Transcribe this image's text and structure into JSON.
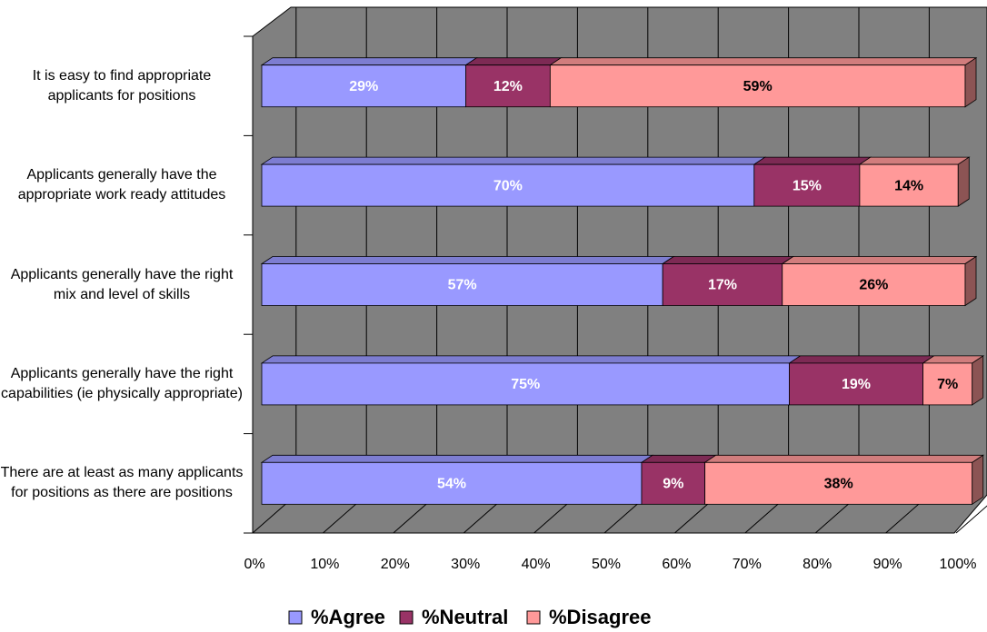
{
  "chart_data": {
    "type": "bar3d-stacked-horizontal",
    "categories": [
      "It is easy to find appropriate applicants for positions",
      "Applicants generally have the appropriate work ready attitudes",
      "Applicants generally have the right mix and level of skills",
      "Applicants generally have the right capabilities (ie physically appropriate)",
      "There are at least as many applicants for positions as there are positions"
    ],
    "series": [
      {
        "name": "%Agree",
        "color": "#9999ff",
        "values": [
          29,
          70,
          57,
          75,
          54
        ],
        "value_labels": [
          "29%",
          "70%",
          "57%",
          "75%",
          "54%"
        ]
      },
      {
        "name": "%Neutral",
        "color": "#993366",
        "values": [
          12,
          15,
          17,
          19,
          9
        ],
        "value_labels": [
          "12%",
          "15%",
          "17%",
          "19%",
          "9%"
        ]
      },
      {
        "name": "%Disagree",
        "color": "#ff9999",
        "values": [
          59,
          14,
          26,
          7,
          38
        ],
        "value_labels": [
          "59%",
          "14%",
          "26%",
          "7%",
          "38%"
        ]
      }
    ],
    "xlim": [
      0,
      100
    ],
    "xticks": [
      {
        "value": 0,
        "label": "0%"
      },
      {
        "value": 10,
        "label": "10%"
      },
      {
        "value": 20,
        "label": "20%"
      },
      {
        "value": 30,
        "label": "30%"
      },
      {
        "value": 40,
        "label": "40%"
      },
      {
        "value": 50,
        "label": "50%"
      },
      {
        "value": 60,
        "label": "60%"
      },
      {
        "value": 70,
        "label": "70%"
      },
      {
        "value": 80,
        "label": "80%"
      },
      {
        "value": 90,
        "label": "90%"
      },
      {
        "value": 100,
        "label": "100%"
      }
    ],
    "grid": true,
    "legend": "bottom"
  }
}
